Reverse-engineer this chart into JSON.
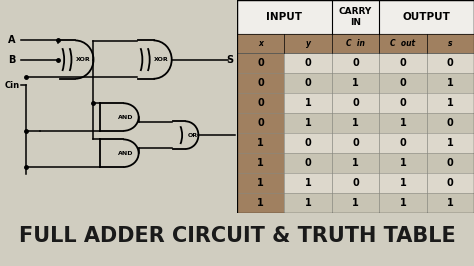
{
  "title": "FULL ADDER CIRCUIT & TRUTH TABLE",
  "title_color": "#1a1a1a",
  "title_fontsize": 15,
  "bg_color": "#d0cdc0",
  "bottom_bg_color": "#e0ddd4",
  "table_header1": "INPUT",
  "table_header2": "CARRY\nIN",
  "table_header3": "OUTPUT",
  "truth_table": [
    [
      0,
      0,
      0,
      0,
      0
    ],
    [
      0,
      0,
      1,
      0,
      1
    ],
    [
      0,
      1,
      0,
      0,
      1
    ],
    [
      0,
      1,
      1,
      1,
      0
    ],
    [
      1,
      0,
      0,
      0,
      1
    ],
    [
      1,
      0,
      1,
      1,
      0
    ],
    [
      1,
      1,
      0,
      1,
      0
    ],
    [
      1,
      1,
      1,
      1,
      1
    ]
  ],
  "dark_col_color": "#a08060",
  "light_row_color": "#ddd8cc",
  "medium_row_color": "#c8c4b4",
  "header_row_color": "#a08060",
  "white_bg": "#f0eeea",
  "table_border_color": "#888880"
}
